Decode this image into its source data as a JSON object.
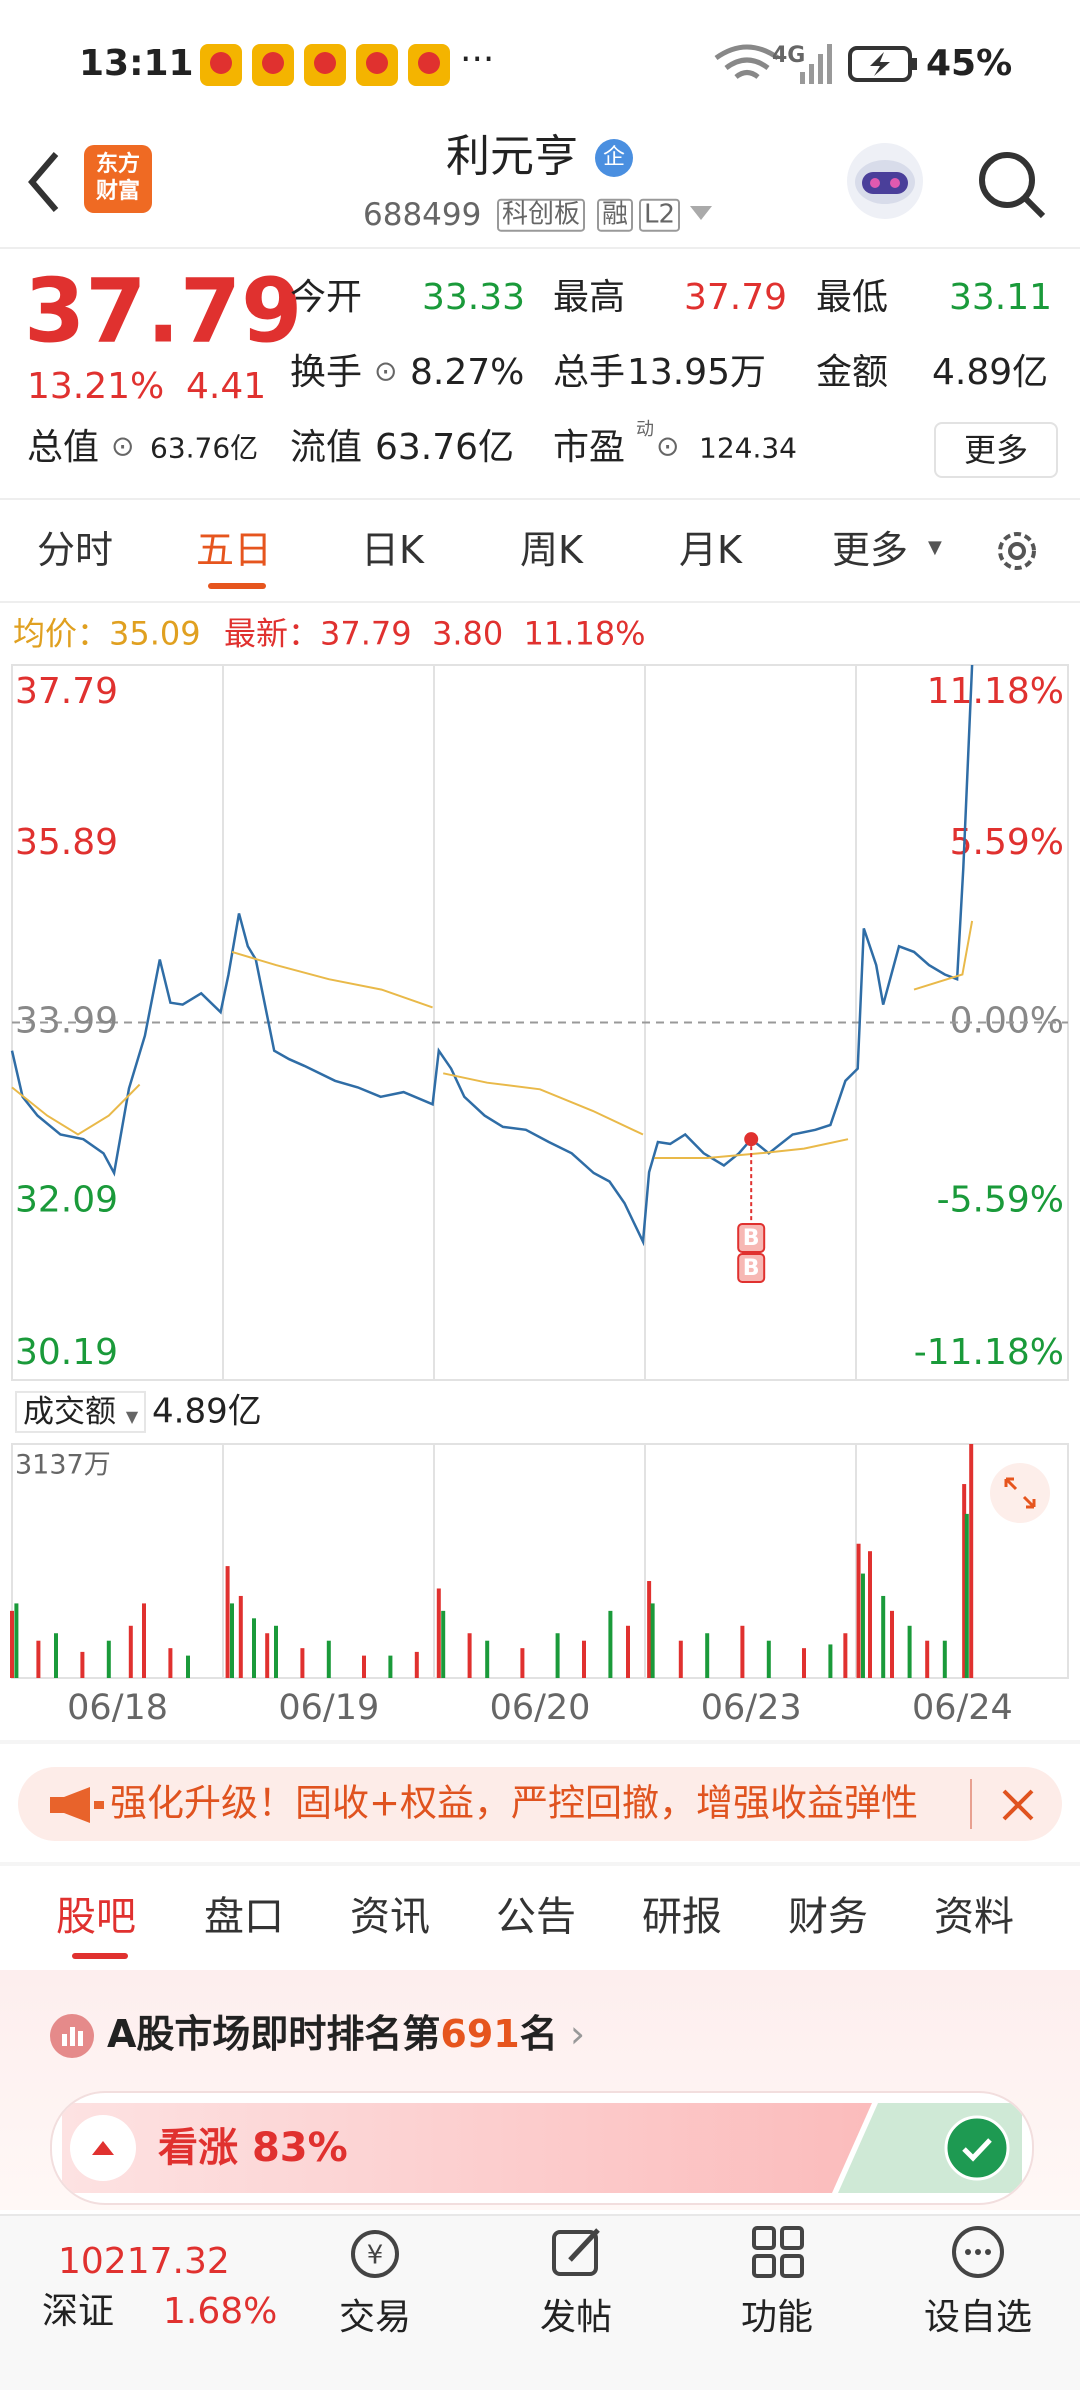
{
  "status_bar": {
    "time": "13:11",
    "network": "4G",
    "battery": "45%"
  },
  "header": {
    "logo": [
      "东方",
      "财富"
    ],
    "title": "利元亨",
    "badge": "企",
    "code": "688499",
    "tags": [
      "科创板",
      "融",
      "L2"
    ]
  },
  "quote": {
    "price": "37.79",
    "change_pct": "13.21%",
    "change": "4.41",
    "fields": [
      {
        "label": "今开",
        "value": "33.33"
      },
      {
        "label": "最高",
        "value": "37.79"
      },
      {
        "label": "最低",
        "value": "33.11"
      },
      {
        "label": "换手",
        "value": "8.27%"
      },
      {
        "label": "总手",
        "value": "13.95万"
      },
      {
        "label": "金额",
        "value": "4.89亿"
      },
      {
        "label": "总值",
        "value": "63.76亿"
      },
      {
        "label": "流值",
        "value": "63.76亿"
      },
      {
        "label": "市盈",
        "sup": "动",
        "value": "124.34"
      }
    ],
    "more": "更多"
  },
  "chart_tabs": [
    "分时",
    "五日",
    "日K",
    "周K",
    "月K",
    "更多"
  ],
  "chart_info": {
    "avg_label": "均价：",
    "avg": "35.09",
    "latest_label": "最新：",
    "latest": "37.79",
    "change": "3.80",
    "change_pct": "11.18%"
  },
  "chart_data": [
    {
      "type": "line",
      "series": [
        {
          "color": "#2f6da6",
          "x": [
            0,
            12,
            29,
            55,
            81,
            104,
            116,
            133,
            151,
            168,
            180,
            194,
            215,
            237,
            246,
            258,
            268,
            277,
            298,
            315,
            332,
            367,
            393,
            419,
            445,
            478,
            485,
            499,
            514,
            537,
            558,
            584,
            610,
            636,
            661,
            679,
            696,
            717,
            724,
            734,
            748,
            765,
            786,
            809,
            826,
            840,
            860,
            887,
            913,
            930,
            947,
            961,
            968,
            982,
            990,
            1008,
            1025,
            1042,
            1060,
            1074,
            1081,
            1091
          ],
          "values": [
            33.69,
            33.2,
            33.0,
            32.8,
            32.75,
            32.6,
            32.39,
            33.29,
            33.85,
            34.66,
            34.2,
            34.18,
            34.3,
            34.1,
            34.5,
            35.15,
            34.8,
            34.66,
            33.69,
            33.6,
            33.53,
            33.37,
            33.3,
            33.2,
            33.25,
            33.12,
            33.69,
            33.5,
            33.2,
            33.0,
            32.88,
            32.85,
            32.72,
            32.6,
            32.39,
            32.3,
            32.07,
            31.66,
            32.4,
            32.72,
            32.7,
            32.8,
            32.6,
            32.47,
            32.6,
            32.75,
            32.6,
            32.8,
            32.85,
            32.9,
            33.37,
            33.5,
            34.99,
            34.6,
            34.18,
            34.8,
            34.74,
            34.6,
            34.5,
            34.45,
            35.63,
            37.79
          ]
        },
        {
          "color": "#e9b949",
          "x": [
            0,
            40,
            75,
            110,
            145,
            240,
            250,
            300,
            360,
            420,
            478,
            480,
            490,
            540,
            600,
            660,
            717,
            720,
            730,
            790,
            850,
            900,
            950,
            960,
            1025,
            1080,
            1091
          ],
          "values": [
            33.3,
            33.0,
            32.8,
            33.0,
            33.33,
            null,
            34.74,
            34.6,
            34.45,
            34.34,
            34.15,
            null,
            33.45,
            33.35,
            33.28,
            33.05,
            32.8,
            null,
            32.55,
            32.55,
            32.6,
            32.65,
            32.75,
            null,
            34.34,
            34.5,
            35.07
          ]
        }
      ],
      "xlim": [
        0,
        1200
      ],
      "ylim": [
        30.19,
        37.79
      ],
      "yticks": [
        37.79,
        35.89,
        33.99,
        32.09,
        30.19
      ],
      "y2lim": [
        -11.18,
        11.18
      ],
      "y2ticks": [
        {
          "value": 11.18,
          "label": "11.18%"
        },
        {
          "value": 5.59,
          "label": "5.59%"
        },
        {
          "value": 0,
          "label": "0.00%"
        },
        {
          "value": -5.59,
          "label": "-5.59%"
        },
        {
          "value": -11.18,
          "label": "-11.18%"
        }
      ],
      "annotations": [
        {
          "x": 840,
          "value": 32.75,
          "text": [
            "B",
            "B"
          ]
        }
      ]
    },
    {
      "type": "bar",
      "series": [
        {
          "color": "#e0312f",
          "x": [
            0,
            30,
            80,
            135,
            150,
            180,
            245,
            260,
            290,
            330,
            400,
            460,
            485,
            520,
            580,
            650,
            700,
            724,
            760,
            830,
            900,
            947,
            962,
            975,
            1000,
            1040,
            1082,
            1090
          ],
          "values": [
            900,
            500,
            350,
            700,
            1000,
            400,
            1500,
            1100,
            600,
            400,
            300,
            350,
            1200,
            600,
            400,
            500,
            700,
            1300,
            500,
            700,
            400,
            600,
            1800,
            1700,
            900,
            500,
            2600,
            3137
          ]
        },
        {
          "color": "#1a9a3a",
          "x": [
            5,
            50,
            110,
            200,
            250,
            275,
            300,
            360,
            430,
            490,
            540,
            620,
            680,
            728,
            790,
            860,
            930,
            967,
            990,
            1020,
            1060,
            1085
          ],
          "values": [
            1000,
            600,
            500,
            300,
            1000,
            800,
            700,
            500,
            300,
            900,
            500,
            600,
            900,
            1000,
            600,
            500,
            450,
            1400,
            1100,
            700,
            500,
            2200
          ]
        }
      ],
      "xlim": [
        0,
        1200
      ],
      "ylim": [
        0,
        3137
      ],
      "yticks": [
        {
          "value": 3137,
          "label": "3137万"
        }
      ],
      "xticks": [
        {
          "value": 120,
          "label": "06/18"
        },
        {
          "value": 360,
          "label": "06/19"
        },
        {
          "value": 600,
          "label": "06/20"
        },
        {
          "value": 840,
          "label": "06/23"
        },
        {
          "value": 1080,
          "label": "06/24"
        }
      ]
    }
  ],
  "volume_header": {
    "label": "成交额",
    "value": "4.89亿"
  },
  "banner": {
    "text": "强化升级！固收+权益，严控回撤，增强收益弹性"
  },
  "section_tabs": [
    "股吧",
    "盘口",
    "资讯",
    "公告",
    "研报",
    "财务",
    "资料"
  ],
  "rank": {
    "prefix": "A股市场即时排名第",
    "number": "691",
    "suffix": "名"
  },
  "vote": {
    "label": "看涨",
    "value": "83%"
  },
  "bottom_nav": {
    "index_value": "10217.32",
    "index_name": "深证",
    "index_change": "1.68%",
    "items": [
      "交易",
      "发帖",
      "功能",
      "设自选"
    ]
  }
}
